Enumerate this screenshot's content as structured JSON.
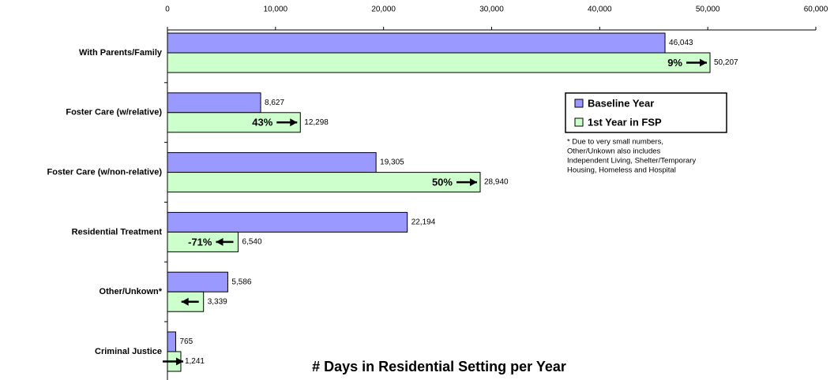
{
  "chart_data": {
    "type": "hbar",
    "x_label": "# Days in Residential Setting per Year",
    "categories": [
      "With Parents/Family",
      "Foster Care (w/relative)",
      "Foster Care (w/non-relative)",
      "Residential Treatment",
      "Other/Unkown*",
      "Criminal Justice"
    ],
    "series": [
      {
        "name": "Baseline Year",
        "color": "#9999ff",
        "values": [
          46043,
          8627,
          19305,
          22194,
          5586,
          765
        ],
        "value_labels": [
          "46,043",
          "8,627",
          "19,305",
          "22,194",
          "5,586",
          "765"
        ]
      },
      {
        "name": "1st Year in FSP",
        "color": "#ccffcc",
        "values": [
          50207,
          12298,
          28940,
          6540,
          3339,
          1241
        ],
        "value_labels": [
          "50,207",
          "12,298",
          "28,940",
          "6,540",
          "3,339",
          "1,241"
        ]
      }
    ],
    "change_labels": [
      "9%",
      "43%",
      "50%",
      "-71%",
      null,
      null
    ],
    "note_lines": [
      "* Due to very small numbers,",
      "Other/Unkown also includes",
      "Independent Living, Shelter/Temporary",
      "Housing, Homeless and Hospital"
    ],
    "xlim": [
      0,
      60000
    ],
    "xticks": [
      0,
      {
        "value": 10000,
        "label": "10,000"
      },
      {
        "value": 20000,
        "label": "20,000"
      },
      {
        "value": 30000,
        "label": "30,000"
      },
      {
        "value": 40000,
        "label": "40,000"
      },
      {
        "value": 50000,
        "label": "50,000"
      },
      {
        "value": 60000,
        "label": "60,000"
      }
    ],
    "legend": "upper right"
  }
}
